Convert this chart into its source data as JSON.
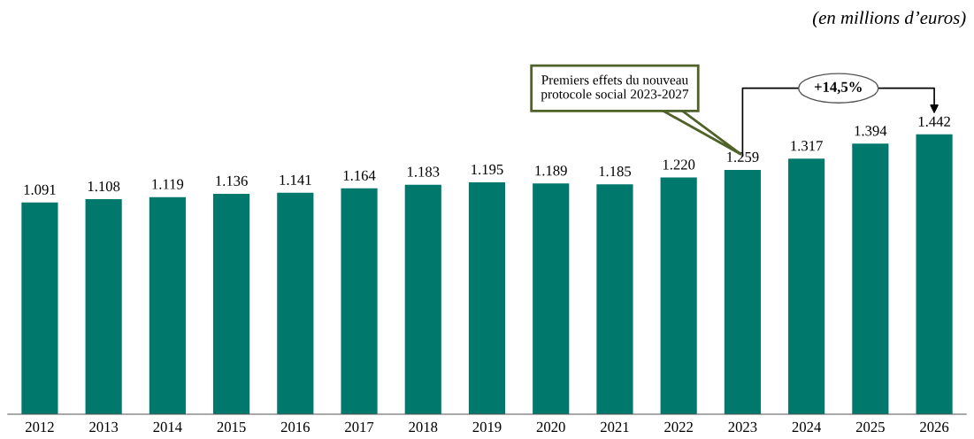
{
  "chart_data": {
    "type": "bar",
    "categories": [
      "2012",
      "2013",
      "2014",
      "2015",
      "2016",
      "2017",
      "2018",
      "2019",
      "2020",
      "2021",
      "2022",
      "2023",
      "2024",
      "2025",
      "2026"
    ],
    "values": [
      1091,
      1108,
      1119,
      1136,
      1141,
      1164,
      1183,
      1195,
      1189,
      1185,
      1220,
      1259,
      1317,
      1394,
      1442
    ],
    "value_labels": [
      "1.091",
      "1.108",
      "1.119",
      "1.136",
      "1.141",
      "1.164",
      "1.183",
      "1.195",
      "1.189",
      "1.185",
      "1.220",
      "1.259",
      "1.317",
      "1.394",
      "1.442"
    ],
    "color": "#00786c",
    "grid": false,
    "legend": false,
    "annotations": [
      "(en millions d’euros)",
      "Premiers effets du nouveau protocole social 2023-2027",
      "+14,5%"
    ]
  }
}
